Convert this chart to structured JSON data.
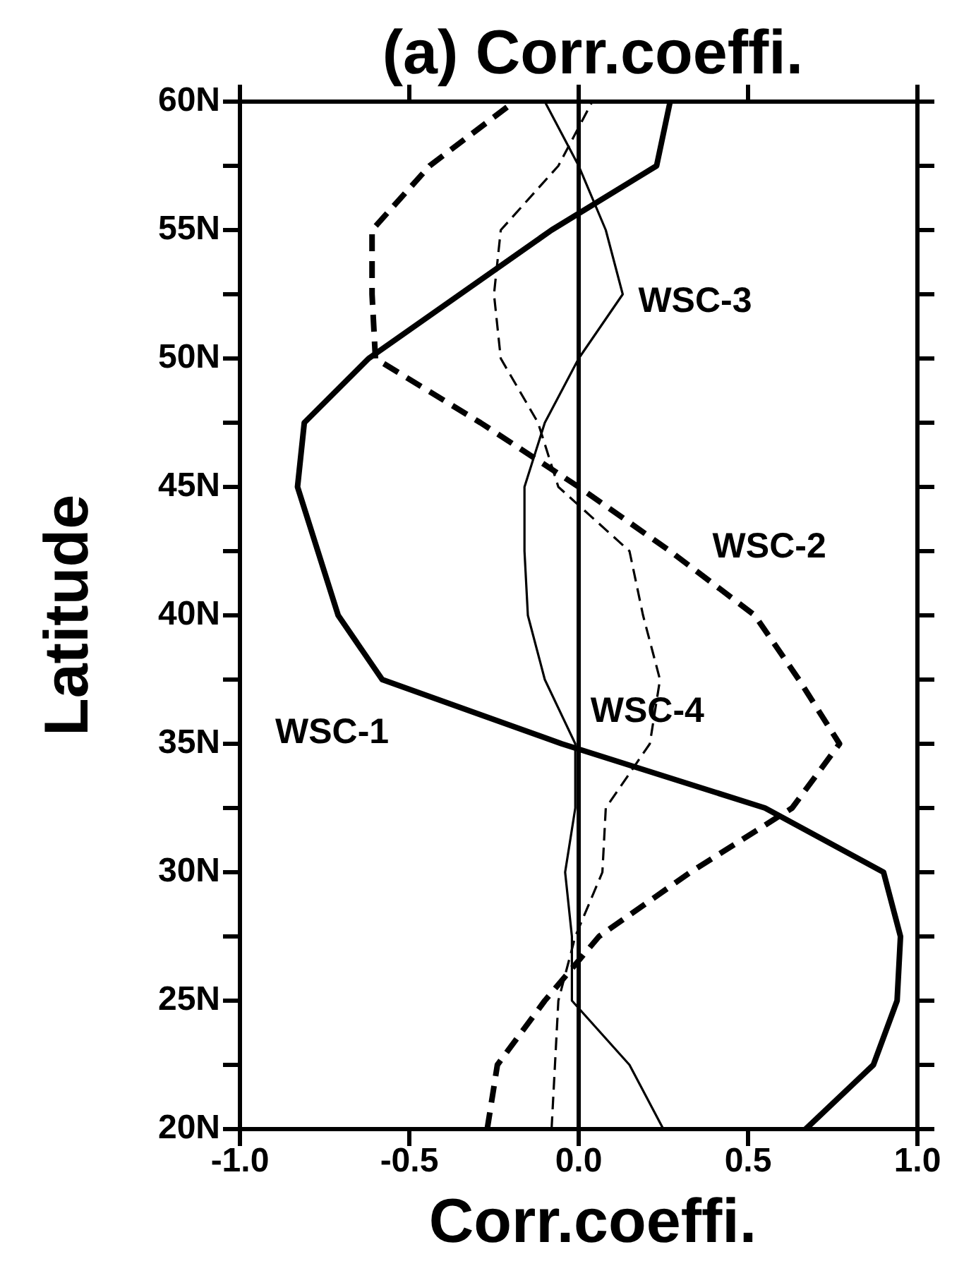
{
  "chart_data": {
    "type": "line",
    "title": "(a) Corr.coeffi.",
    "xlabel": "Corr.coeffi.",
    "ylabel": "Latitude",
    "xlim": [
      -1,
      1
    ],
    "xticks": [
      {
        "value": -1,
        "label": "-1.0"
      },
      {
        "value": -0.5,
        "label": "-0.5"
      },
      {
        "value": 0,
        "label": "0.0"
      },
      {
        "value": 0.5,
        "label": "0.5"
      },
      {
        "value": 1,
        "label": "1.0"
      }
    ],
    "ylim": [
      20,
      60
    ],
    "yticks": [
      {
        "value": 20,
        "label": "20N"
      },
      {
        "value": 22.5,
        "label": null
      },
      {
        "value": 25,
        "label": "25N"
      },
      {
        "value": 27.5,
        "label": null
      },
      {
        "value": 30,
        "label": "30N"
      },
      {
        "value": 32.5,
        "label": null
      },
      {
        "value": 35,
        "label": "35N"
      },
      {
        "value": 37.5,
        "label": null
      },
      {
        "value": 40,
        "label": "40N"
      },
      {
        "value": 42.5,
        "label": null
      },
      {
        "value": 45,
        "label": "45N"
      },
      {
        "value": 47.5,
        "label": null
      },
      {
        "value": 50,
        "label": "50N"
      },
      {
        "value": 52.5,
        "label": null
      },
      {
        "value": 55,
        "label": "55N"
      },
      {
        "value": 57.5,
        "label": null
      },
      {
        "value": 60,
        "label": "60N"
      }
    ],
    "ref_lines": [
      {
        "axis": "x",
        "value": 0,
        "color": "#000000",
        "line_style": "solid"
      }
    ],
    "series": [
      {
        "name": "WSC-1",
        "color": "#000000",
        "line_style": "solid",
        "x": [
          0.67,
          0.87,
          0.94,
          0.95,
          0.9,
          0.55,
          -0.05,
          -0.58,
          -0.71,
          -0.77,
          -0.83,
          -0.81,
          -0.62,
          -0.35,
          -0.08,
          0.23,
          0.27
        ],
        "values": [
          20,
          22.5,
          25,
          27.5,
          30,
          32.5,
          35,
          37.5,
          40,
          42.5,
          45,
          47.5,
          50,
          52.5,
          55,
          57.5,
          60
        ]
      },
      {
        "name": "WSC-2",
        "color": "#000000",
        "line_style": "dashed",
        "x": [
          -0.27,
          -0.24,
          -0.1,
          0.06,
          0.33,
          0.63,
          0.77,
          0.65,
          0.52,
          0.27,
          0.0,
          -0.29,
          -0.6,
          -0.61,
          -0.61,
          -0.44,
          -0.19
        ],
        "values": [
          20,
          22.5,
          25,
          27.5,
          30,
          32.5,
          35,
          37.5,
          40,
          42.5,
          45,
          47.5,
          50,
          52.5,
          55,
          57.5,
          60
        ]
      },
      {
        "name": "WSC-3",
        "color": "#000000",
        "line_style": "solid",
        "x": [
          0.25,
          0.15,
          -0.02,
          -0.02,
          -0.04,
          -0.01,
          -0.01,
          -0.1,
          -0.15,
          -0.16,
          -0.16,
          -0.1,
          0.0,
          0.13,
          0.08,
          0.0,
          -0.1
        ],
        "values": [
          20,
          22.5,
          25,
          27.5,
          30,
          32.5,
          35,
          37.5,
          40,
          42.5,
          45,
          47.5,
          50,
          52.5,
          55,
          57.5,
          60
        ]
      },
      {
        "name": "WSC-4",
        "color": "#000000",
        "line_style": "dashed",
        "x": [
          -0.08,
          -0.07,
          -0.06,
          -0.01,
          0.07,
          0.08,
          0.21,
          0.24,
          0.19,
          0.15,
          -0.06,
          -0.12,
          -0.23,
          -0.25,
          -0.23,
          -0.06,
          0.04
        ],
        "values": [
          20,
          22.5,
          25,
          27.5,
          30,
          32.5,
          35,
          37.5,
          40,
          42.5,
          45,
          47.5,
          50,
          52.5,
          55,
          57.5,
          60
        ]
      }
    ],
    "grid": false,
    "marker": "none"
  }
}
